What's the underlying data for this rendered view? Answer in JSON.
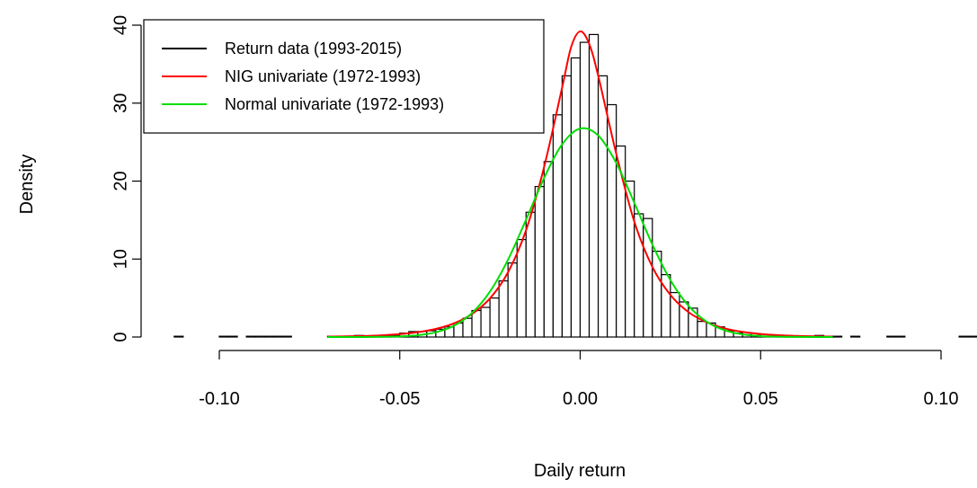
{
  "chart_data": {
    "type": "histogram",
    "xlabel": "Daily return",
    "ylabel": "Density",
    "name": "Return data (1993-2015)",
    "color": "#000000",
    "bar_fill": "#ffffff",
    "bins": [
      -0.1125,
      -0.11,
      -0.1075,
      -0.105,
      -0.1025,
      -0.1,
      -0.0975,
      -0.095,
      -0.0925,
      -0.09,
      -0.0875,
      -0.085,
      -0.0825,
      -0.08,
      -0.0775,
      -0.075,
      -0.0725,
      -0.07,
      -0.0675,
      -0.065,
      -0.0625,
      -0.06,
      -0.0575,
      -0.055,
      -0.0525,
      -0.05,
      -0.0475,
      -0.045,
      -0.0425,
      -0.04,
      -0.0375,
      -0.035,
      -0.0325,
      -0.03,
      -0.0275,
      -0.025,
      -0.0225,
      -0.02,
      -0.0175,
      -0.015,
      -0.0125,
      -0.01,
      -0.0075,
      -0.005,
      -0.0025,
      0,
      0.0025,
      0.005,
      0.0075,
      0.01,
      0.0125,
      0.015,
      0.0175,
      0.02,
      0.0225,
      0.025,
      0.0275,
      0.03,
      0.0325,
      0.035,
      0.0375,
      0.04,
      0.0425,
      0.045,
      0.0475,
      0.05,
      0.0525,
      0.055,
      0.0575,
      0.06,
      0.0625,
      0.065,
      0.0675,
      0.07,
      0.0725,
      0.075,
      0.0775,
      0.08,
      0.0825,
      0.085,
      0.0875,
      0.09,
      0.0925,
      0.095,
      0.0975,
      0.1,
      0.1025,
      0.105,
      0.1075,
      0.11
    ],
    "values": [
      0.1,
      0,
      0,
      0,
      0,
      0.1,
      0.1,
      0,
      0.1,
      0.1,
      0.1,
      0.1,
      0.1,
      0,
      0,
      0,
      0,
      0.1,
      0.1,
      0.1,
      0.2,
      0.1,
      0.1,
      0.1,
      0.2,
      0.5,
      0.7,
      0.7,
      0.8,
      1,
      1.3,
      1.8,
      2.4,
      3.4,
      3.8,
      5,
      7.2,
      9.5,
      12.5,
      16,
      19.3,
      22.5,
      28.5,
      33.5,
      35.8,
      37.8,
      38.8,
      33.5,
      29.8,
      24.5,
      20,
      15.8,
      15.2,
      11,
      8,
      5.7,
      4.5,
      3.7,
      2,
      1.8,
      1.3,
      0.8,
      0.5,
      0.3,
      0.2,
      0.1,
      0.1,
      0.2,
      0.1,
      0.1,
      0.1,
      0.2,
      0.1,
      0.1,
      0,
      0.1,
      0,
      0,
      0,
      0.1,
      0.1,
      0,
      0,
      0,
      0,
      0,
      0,
      0.1,
      0.1
    ],
    "series": [
      {
        "name": "NIG univariate (1972-1993)",
        "color": "#ff0000",
        "type": "line",
        "x": [
          -0.07,
          -0.065,
          -0.06,
          -0.055,
          -0.05,
          -0.045,
          -0.04,
          -0.035,
          -0.03,
          -0.025,
          -0.02,
          -0.015,
          -0.01,
          -0.005,
          -0.0025,
          0,
          0.0025,
          0.005,
          0.01,
          0.015,
          0.02,
          0.025,
          0.03,
          0.035,
          0.04,
          0.045,
          0.05,
          0.055,
          0.06,
          0.065,
          0.07
        ],
        "values": [
          0.05,
          0.08,
          0.13,
          0.22,
          0.37,
          0.62,
          1.04,
          1.75,
          2.95,
          4.95,
          8.3,
          13.7,
          21.8,
          32,
          37.2,
          39.2,
          37.6,
          33.5,
          23.5,
          14.8,
          9,
          5.4,
          3.2,
          1.9,
          1.12,
          0.66,
          0.39,
          0.23,
          0.14,
          0.08,
          0.05
        ]
      },
      {
        "name": "Normal univariate (1972-1993)",
        "color": "#00dd00",
        "type": "line",
        "x": [
          -0.07,
          -0.065,
          -0.06,
          -0.055,
          -0.05,
          -0.045,
          -0.04,
          -0.035,
          -0.03,
          -0.025,
          -0.02,
          -0.015,
          -0.01,
          -0.005,
          0,
          0.005,
          0.01,
          0.015,
          0.02,
          0.025,
          0.03,
          0.035,
          0.04,
          0.045,
          0.05,
          0.055,
          0.06,
          0.065,
          0.07
        ],
        "values": [
          0,
          0.001,
          0.006,
          0.023,
          0.076,
          0.227,
          0.61,
          1.44,
          3.07,
          5.83,
          9.91,
          15.05,
          20.4,
          24.71,
          26.74,
          25.85,
          22.32,
          17.22,
          11.87,
          7.31,
          4.02,
          1.98,
          0.87,
          0.34,
          0.12,
          0.037,
          0.01,
          0.002,
          0
        ]
      }
    ],
    "xlim": [
      -0.1,
      0.1
    ],
    "xticks": [
      {
        "value": -0.1,
        "label": "-0.10"
      },
      {
        "value": -0.05,
        "label": "-0.05"
      },
      {
        "value": 0,
        "label": "0.00"
      },
      {
        "value": 0.05,
        "label": "0.05"
      },
      {
        "value": 0.1,
        "label": "0.10"
      }
    ],
    "ylim": [
      0,
      40
    ],
    "yticks": [
      0,
      10,
      20,
      30,
      40
    ],
    "legend": "top-left"
  }
}
